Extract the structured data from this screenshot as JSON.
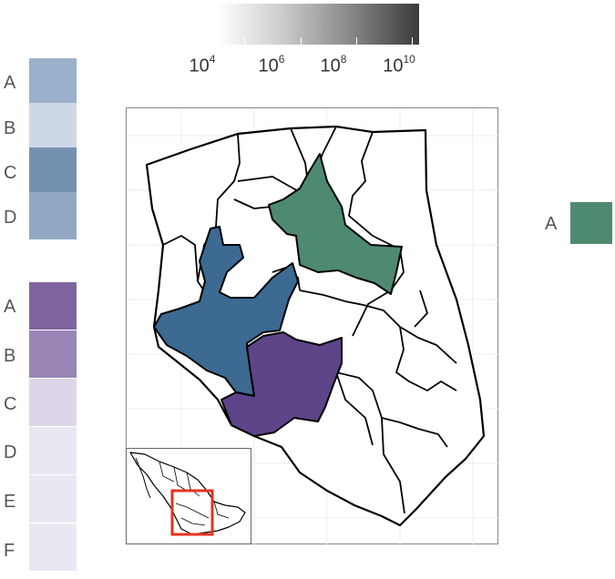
{
  "gradient_legend": {
    "colors": [
      "#ffffff",
      "#3a3a3a"
    ],
    "scale": "log",
    "ticks": [
      {
        "base": "10",
        "exp": "4"
      },
      {
        "base": "10",
        "exp": "6"
      },
      {
        "base": "10",
        "exp": "8"
      },
      {
        "base": "10",
        "exp": "10"
      }
    ]
  },
  "legend_blue": {
    "items": [
      {
        "label": "A",
        "color": "#9bb0cb"
      },
      {
        "label": "B",
        "color": "#ced8e5"
      },
      {
        "label": "C",
        "color": "#7490b1"
      },
      {
        "label": "D",
        "color": "#91a8c4"
      }
    ]
  },
  "legend_purple": {
    "items": [
      {
        "label": "A",
        "color": "#7f659f"
      },
      {
        "label": "B",
        "color": "#9a85b6"
      },
      {
        "label": "C",
        "color": "#ddd6e8"
      },
      {
        "label": "D",
        "color": "#ebe7f2"
      },
      {
        "label": "E",
        "color": "#ebe7f2"
      },
      {
        "label": "F",
        "color": "#ebe7f2"
      }
    ]
  },
  "legend_green": {
    "items": [
      {
        "label": "A",
        "color": "#4e8a70"
      }
    ]
  },
  "map": {
    "region_colors": {
      "green": "#4e8a70",
      "blue": "#3c6a92",
      "purple": "#5e4488"
    },
    "inset_highlight_color": "#e8321e"
  }
}
